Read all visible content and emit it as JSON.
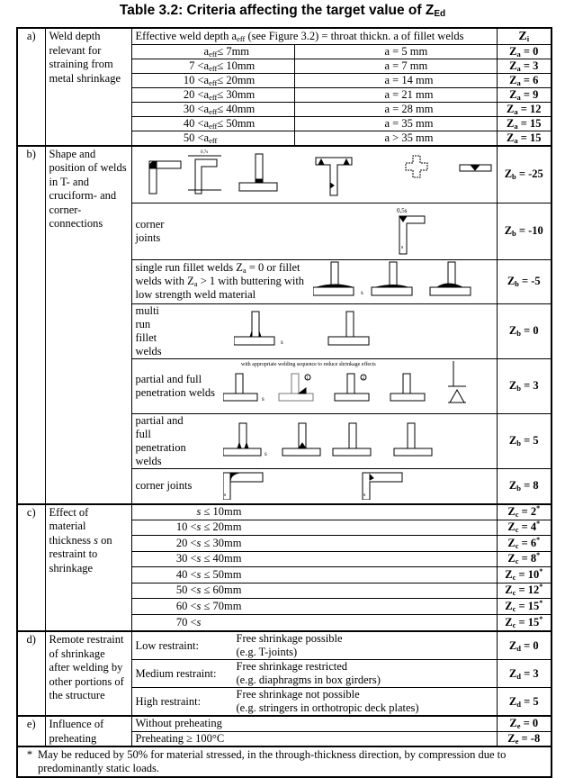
{
  "title": {
    "text": "Table 3.2: Criteria affecting the target value of Z",
    "sub": "Ed"
  },
  "header": {
    "pre": "Effective weld depth a",
    "sub": "eff",
    "post": " (see Figure 3.2) = throat thickn. a of fillet welds",
    "z": "Z",
    "z_sub": "i"
  },
  "a": {
    "letter": "a)",
    "desc": "Weld depth relevant for straining from metal shrinkage",
    "rows": [
      {
        "pre": "",
        "var": "a",
        "sub": "eff",
        "post": "≤  7mm",
        "a": "a =  5 mm",
        "z_sub": "a",
        "z": "=  0"
      },
      {
        "pre": "7 < ",
        "var": "a",
        "sub": "eff",
        "post": "≤ 10mm",
        "a": "a =  7 mm",
        "z_sub": "a",
        "z": "=  3"
      },
      {
        "pre": "10 < ",
        "var": "a",
        "sub": "eff",
        "post": "≤ 20mm",
        "a": "a = 14 mm",
        "z_sub": "a",
        "z": "=  6"
      },
      {
        "pre": "20 < ",
        "var": "a",
        "sub": "eff",
        "post": "≤ 30mm",
        "a": "a = 21 mm",
        "z_sub": "a",
        "z": "=  9"
      },
      {
        "pre": "30 < ",
        "var": "a",
        "sub": "eff",
        "post": "≤ 40mm",
        "a": "a = 28 mm",
        "z_sub": "a",
        "z": "= 12"
      },
      {
        "pre": "40 < ",
        "var": "a",
        "sub": "eff",
        "post": "≤ 50mm",
        "a": "a = 35 mm",
        "z_sub": "a",
        "z": "= 15"
      },
      {
        "pre": "50 < ",
        "var": "a",
        "sub": "eff",
        "post": "",
        "a": "a > 35 mm",
        "z_sub": "a",
        "z": "= 15"
      }
    ]
  },
  "b": {
    "letter": "b)",
    "desc": "Shape and position of welds in T- and cruciform- and corner-connections",
    "rows": [
      {
        "label": "",
        "z_sub": "b",
        "z": "= -25"
      },
      {
        "label": "corner joints",
        "z_sub": "b",
        "z": "= -10"
      },
      {
        "label_pre": "single run fillet welds Z",
        "label_sub1": "a",
        "label_mid": " = 0 or fillet welds with Z",
        "label_sub2": "a",
        "label_post": " > 1 with buttering with low strength weld material",
        "z_sub": "b",
        "z": "= -5"
      },
      {
        "label": "multi run fillet welds",
        "z_sub": "b",
        "z": "= 0"
      },
      {
        "label": "partial and full penetration welds",
        "z_sub": "b",
        "z": "= 3"
      },
      {
        "label": "partial and full penetration welds",
        "z_sub": "b",
        "z": "= 5"
      },
      {
        "label": "corner joints",
        "z_sub": "b",
        "z": "= 8"
      }
    ],
    "fig_labels": {
      "dim_07s": "0,7s",
      "dim_05s": "0,5s",
      "s": "s",
      "sequence_note": "with appropriate welding sequence to reduce shrinkage effects",
      "m1": "1",
      "m2": "2"
    }
  },
  "c": {
    "letter": "c)",
    "desc_pre": "Effect of material thickness ",
    "desc_var": "s",
    "desc_post": " on restraint to shrinkage",
    "rows": [
      {
        "pre": "",
        "post": " ≤ 10mm",
        "z_sub": "c",
        "z": "=  2"
      },
      {
        "pre": "10 < ",
        "post": " ≤ 20mm",
        "z_sub": "c",
        "z": "=  4"
      },
      {
        "pre": "20 < ",
        "post": " ≤ 30mm",
        "z_sub": "c",
        "z": "=  6"
      },
      {
        "pre": "30 < ",
        "post": " ≤ 40mm",
        "z_sub": "c",
        "z": "=  8"
      },
      {
        "pre": "40 < ",
        "post": " ≤ 50mm",
        "z_sub": "c",
        "z": "= 10"
      },
      {
        "pre": "50 < ",
        "post": " ≤ 60mm",
        "z_sub": "c",
        "z": "= 12"
      },
      {
        "pre": "60 < ",
        "post": " ≤ 70mm",
        "z_sub": "c",
        "z": "= 15"
      },
      {
        "pre": "70 < ",
        "post": "",
        "z_sub": "c",
        "z": "= 15"
      }
    ],
    "var": "s",
    "star": "*"
  },
  "d": {
    "letter": "d)",
    "desc": "Remote restraint of shrinkage after welding by other portions of the structure",
    "rows": [
      {
        "label": "Low restraint:",
        "line1": "Free shrinkage possible",
        "line2": "(e.g. T-joints)",
        "z_sub": "d",
        "z": "= 0"
      },
      {
        "label": "Medium restraint:",
        "line1": "Free shrinkage restricted",
        "line2": "(e.g. diaphragms in box girders)",
        "z_sub": "d",
        "z": "= 3"
      },
      {
        "label": "High restraint:",
        "line1": "Free shrinkage not possible",
        "line2": "(e.g. stringers in orthotropic deck plates)",
        "z_sub": "d",
        "z": "= 5"
      }
    ]
  },
  "e": {
    "letter": "e)",
    "desc": "Influence of preheating",
    "rows": [
      {
        "label": "Without preheating",
        "z_sub": "e",
        "z": "=  0"
      },
      {
        "label": "Preheating ≥ 100°C",
        "z_sub": "e",
        "z": "= -8"
      }
    ]
  },
  "footnote": {
    "star": "*",
    "text": "May be reduced by 50% for material stressed, in the through-thickness direction, by compression due to predominantly static loads."
  }
}
